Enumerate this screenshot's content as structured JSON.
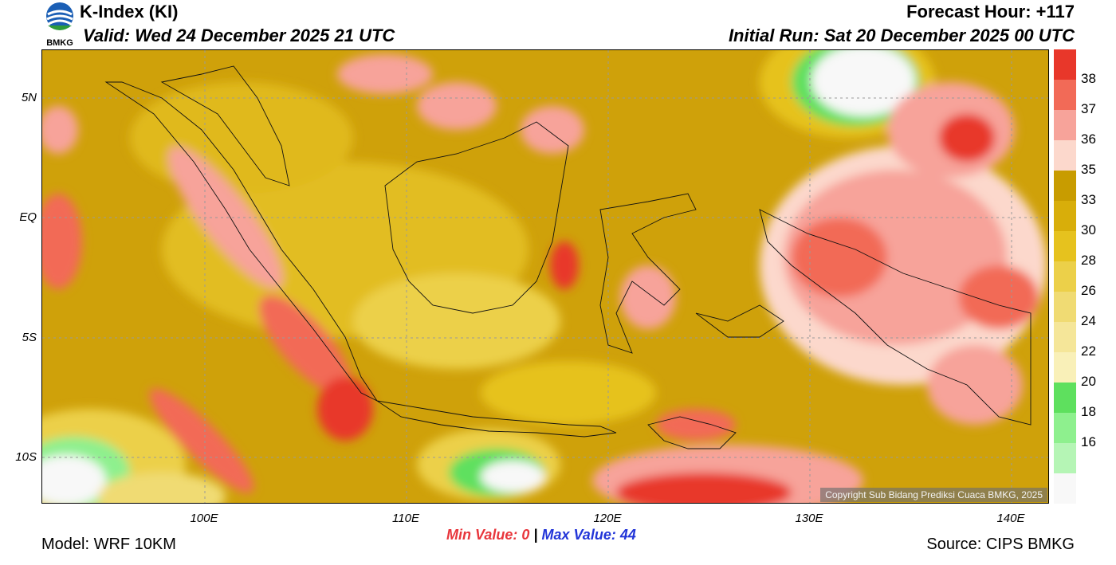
{
  "header": {
    "title": "K-Index (KI)",
    "valid": "Valid: Wed 24 December 2025 21 UTC",
    "forecast_hour": "Forecast Hour: +117",
    "initial_run": "Initial Run: Sat 20 December 2025 00 UTC",
    "logo_text": "BMKG"
  },
  "map": {
    "lat_labels": [
      "5N",
      "EQ",
      "5S",
      "10S"
    ],
    "lon_labels": [
      "100E",
      "110E",
      "120E",
      "130E",
      "140E"
    ],
    "copyright": "Copyright Sub Bidang Prediksi Cuaca BMKG, 2025"
  },
  "colorbar": {
    "labels": [
      "38",
      "37",
      "36",
      "35",
      "33",
      "30",
      "28",
      "26",
      "24",
      "22",
      "20",
      "18",
      "16"
    ],
    "colors": [
      "#e8372a",
      "#f26a57",
      "#f7a39a",
      "#fcd8cc",
      "#c89c00",
      "#d8ae0a",
      "#e6c21e",
      "#ecd049",
      "#f0db73",
      "#f5e699",
      "#f9f0b8",
      "#5ee05e",
      "#8ef08e",
      "#b5f5b5",
      "#f8f8f8"
    ]
  },
  "stats": {
    "min_label": "Min Value:",
    "min_value": "0",
    "separator": "|",
    "max_label": "Max Value:",
    "max_value": "44"
  },
  "footer": {
    "model": "Model: WRF 10KM",
    "source": "Source: CIPS BMKG"
  }
}
